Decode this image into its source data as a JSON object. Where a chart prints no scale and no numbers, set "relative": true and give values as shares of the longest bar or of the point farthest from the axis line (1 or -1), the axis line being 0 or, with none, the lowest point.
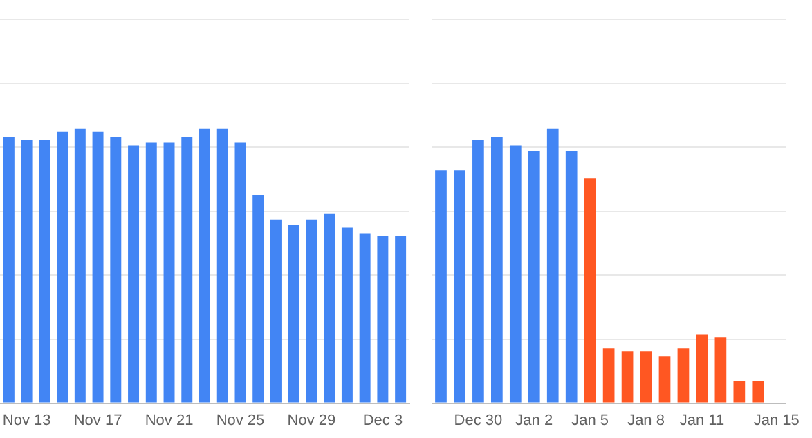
{
  "chart_data": [
    {
      "type": "bar",
      "relative": true,
      "grid": "y",
      "legend": false,
      "categories": [
        null,
        "Nov 13",
        null,
        null,
        null,
        "Nov 17",
        null,
        null,
        null,
        "Nov 21",
        null,
        null,
        null,
        "Nov 25",
        null,
        null,
        null,
        "Nov 29",
        null,
        null,
        null,
        "Dec 3",
        null
      ],
      "series": [
        {
          "color": "#4285f4",
          "values": [
            0.97,
            0.96,
            0.96,
            0.99,
            1,
            0.99,
            0.97,
            0.94,
            0.95,
            0.95,
            0.97,
            1,
            1,
            0.95,
            0.76,
            0.67,
            0.65,
            0.67,
            0.69,
            0.64,
            0.62,
            0.61,
            0.61
          ]
        }
      ]
    },
    {
      "type": "bar",
      "relative": true,
      "grid": "y",
      "legend": false,
      "categories": [
        null,
        null,
        "Dec 30",
        null,
        null,
        "Jan 2",
        null,
        null,
        "Jan 5",
        null,
        null,
        "Jan 8",
        null,
        null,
        "Jan 11",
        null,
        null,
        null,
        "Jan 15"
      ],
      "series": [
        {
          "colors": [
            "#4285f4",
            "#4285f4",
            "#4285f4",
            "#4285f4",
            "#4285f4",
            "#4285f4",
            "#4285f4",
            "#4285f4",
            "#ff5722",
            "#ff5722",
            "#ff5722",
            "#ff5722",
            "#ff5722",
            "#ff5722",
            "#ff5722",
            "#ff5722",
            "#ff5722",
            "#ff5722",
            "#ff5722"
          ],
          "values": [
            0.85,
            0.85,
            0.96,
            0.97,
            0.94,
            0.92,
            1,
            0.92,
            0.82,
            0.2,
            0.19,
            0.19,
            0.17,
            0.2,
            0.25,
            0.24,
            0.08,
            0.08,
            null
          ]
        }
      ]
    }
  ]
}
